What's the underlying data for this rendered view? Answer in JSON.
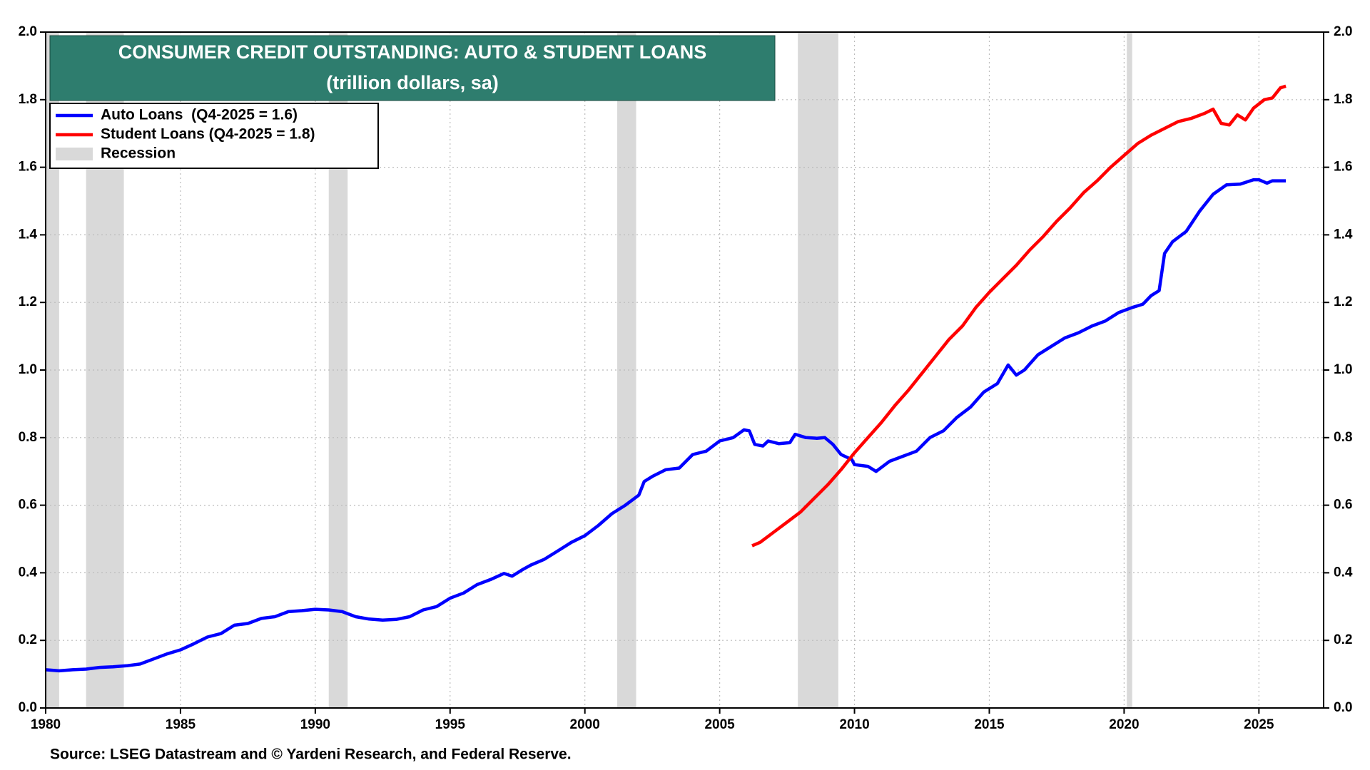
{
  "chart_data": {
    "type": "line",
    "title": "CONSUMER CREDIT OUTSTANDING: AUTO & STUDENT LOANS",
    "subtitle": "(trillion dollars, sa)",
    "source": "Source: LSEG Datastream and © Yardeni Research, and Federal Reserve.",
    "recession_label": "Recession",
    "recession_color": "#d9d9d9",
    "recessions": [
      [
        1980.0,
        1980.5
      ],
      [
        1981.5,
        1982.9
      ],
      [
        1990.5,
        1991.2
      ],
      [
        2001.2,
        2001.9
      ],
      [
        2007.9,
        2009.4
      ],
      [
        2020.1,
        2020.3
      ]
    ],
    "xlim": [
      1980,
      2027.4
    ],
    "xticks": [
      1980,
      1985,
      1990,
      1995,
      2000,
      2005,
      2010,
      2015,
      2020,
      2025
    ],
    "ylim": [
      0,
      2
    ],
    "yticks": [
      {
        "value": 0,
        "label": "0.0"
      },
      {
        "value": 0.2,
        "label": "0.2"
      },
      {
        "value": 0.4,
        "label": "0.4"
      },
      {
        "value": 0.6,
        "label": "0.6"
      },
      {
        "value": 0.8,
        "label": "0.8"
      },
      {
        "value": 1,
        "label": "1.0"
      },
      {
        "value": 1.2,
        "label": "1.2"
      },
      {
        "value": 1.4,
        "label": "1.4"
      },
      {
        "value": 1.6,
        "label": "1.6"
      },
      {
        "value": 1.8,
        "label": "1.8"
      },
      {
        "value": 2,
        "label": "2.0"
      }
    ],
    "y2lim": [
      0,
      2
    ],
    "y2ticks": [
      {
        "value": 0,
        "label": "0.0"
      },
      {
        "value": 0.2,
        "label": "0.2"
      },
      {
        "value": 0.4,
        "label": "0.4"
      },
      {
        "value": 0.6,
        "label": "0.6"
      },
      {
        "value": 0.8,
        "label": "0.8"
      },
      {
        "value": 1,
        "label": "1.0"
      },
      {
        "value": 1.2,
        "label": "1.2"
      },
      {
        "value": 1.4,
        "label": "1.4"
      },
      {
        "value": 1.6,
        "label": "1.6"
      },
      {
        "value": 1.8,
        "label": "1.8"
      },
      {
        "value": 2,
        "label": "2.0"
      }
    ],
    "grid": true,
    "series": [
      {
        "name": "Auto Loans  (Q4-2025 = 1.6)",
        "color": "#0000ff",
        "x": [
          1980.0,
          1980.5,
          1981,
          1981.5,
          1982,
          1982.5,
          1983,
          1983.5,
          1984,
          1984.5,
          1985,
          1985.5,
          1986,
          1986.5,
          1987,
          1987.5,
          1988,
          1988.5,
          1989,
          1989.5,
          1990,
          1990.5,
          1991,
          1991.5,
          1992,
          1992.5,
          1993,
          1993.5,
          1994,
          1994.5,
          1995,
          1995.5,
          1996,
          1996.5,
          1997,
          1997.3,
          1997.7,
          1998,
          1998.5,
          1999,
          1999.5,
          2000,
          2000.5,
          2001,
          2001.5,
          2002,
          2002.2,
          2002.5,
          2003,
          2003.5,
          2004,
          2004.5,
          2005,
          2005.5,
          2005.9,
          2006.1,
          2006.3,
          2006.6,
          2006.8,
          2007.2,
          2007.6,
          2007.8,
          2008.2,
          2008.6,
          2008.9,
          2009.2,
          2009.5,
          2009.9,
          2010,
          2010.5,
          2010.8,
          2011.3,
          2011.8,
          2012.3,
          2012.8,
          2013.3,
          2013.8,
          2014.3,
          2014.8,
          2015.3,
          2015.7,
          2016.0,
          2016.3,
          2016.8,
          2017.3,
          2017.8,
          2018.3,
          2018.8,
          2019.3,
          2019.8,
          2020.3,
          2020.7,
          2021.0,
          2021.3,
          2021.5,
          2021.8,
          2022.3,
          2022.8,
          2023.3,
          2023.8,
          2024.3,
          2024.8,
          2025.0,
          2025.3,
          2025.5,
          2026.0
        ],
        "values": [
          0.113,
          0.11,
          0.113,
          0.115,
          0.12,
          0.122,
          0.125,
          0.13,
          0.145,
          0.16,
          0.172,
          0.19,
          0.21,
          0.22,
          0.245,
          0.25,
          0.265,
          0.27,
          0.285,
          0.288,
          0.292,
          0.29,
          0.285,
          0.27,
          0.263,
          0.26,
          0.262,
          0.27,
          0.29,
          0.3,
          0.325,
          0.34,
          0.365,
          0.38,
          0.398,
          0.39,
          0.41,
          0.423,
          0.44,
          0.465,
          0.49,
          0.51,
          0.54,
          0.575,
          0.6,
          0.63,
          0.67,
          0.685,
          0.705,
          0.71,
          0.75,
          0.76,
          0.79,
          0.8,
          0.823,
          0.82,
          0.78,
          0.775,
          0.79,
          0.782,
          0.785,
          0.81,
          0.8,
          0.798,
          0.8,
          0.78,
          0.75,
          0.735,
          0.72,
          0.715,
          0.7,
          0.73,
          0.745,
          0.76,
          0.8,
          0.82,
          0.86,
          0.89,
          0.935,
          0.96,
          1.015,
          0.985,
          1.0,
          1.045,
          1.07,
          1.095,
          1.11,
          1.13,
          1.145,
          1.17,
          1.185,
          1.195,
          1.22,
          1.235,
          1.345,
          1.38,
          1.41,
          1.47,
          1.52,
          1.548,
          1.55,
          1.563,
          1.563,
          1.553,
          1.56,
          1.56
        ]
      },
      {
        "name": "Student Loans (Q4-2025 = 1.8)",
        "color": "#ff0000",
        "x": [
          2006.2,
          2006.5,
          2007,
          2007.5,
          2008,
          2008.5,
          2009,
          2009.5,
          2010,
          2010.5,
          2011,
          2011.5,
          2012,
          2012.5,
          2013,
          2013.5,
          2014,
          2014.5,
          2015,
          2015.5,
          2016,
          2016.5,
          2017,
          2017.5,
          2018,
          2018.5,
          2019,
          2019.5,
          2020,
          2020.5,
          2021,
          2021.5,
          2022,
          2022.5,
          2023,
          2023.3,
          2023.6,
          2023.9,
          2024.2,
          2024.5,
          2024.8,
          2025.2,
          2025.5,
          2025.8,
          2026.0
        ],
        "values": [
          0.48,
          0.49,
          0.52,
          0.55,
          0.58,
          0.62,
          0.66,
          0.705,
          0.755,
          0.8,
          0.845,
          0.895,
          0.94,
          0.99,
          1.04,
          1.09,
          1.13,
          1.185,
          1.23,
          1.27,
          1.31,
          1.355,
          1.395,
          1.44,
          1.48,
          1.525,
          1.56,
          1.6,
          1.635,
          1.67,
          1.695,
          1.715,
          1.735,
          1.745,
          1.76,
          1.772,
          1.73,
          1.725,
          1.755,
          1.74,
          1.775,
          1.8,
          1.805,
          1.835,
          1.84
        ]
      }
    ]
  }
}
